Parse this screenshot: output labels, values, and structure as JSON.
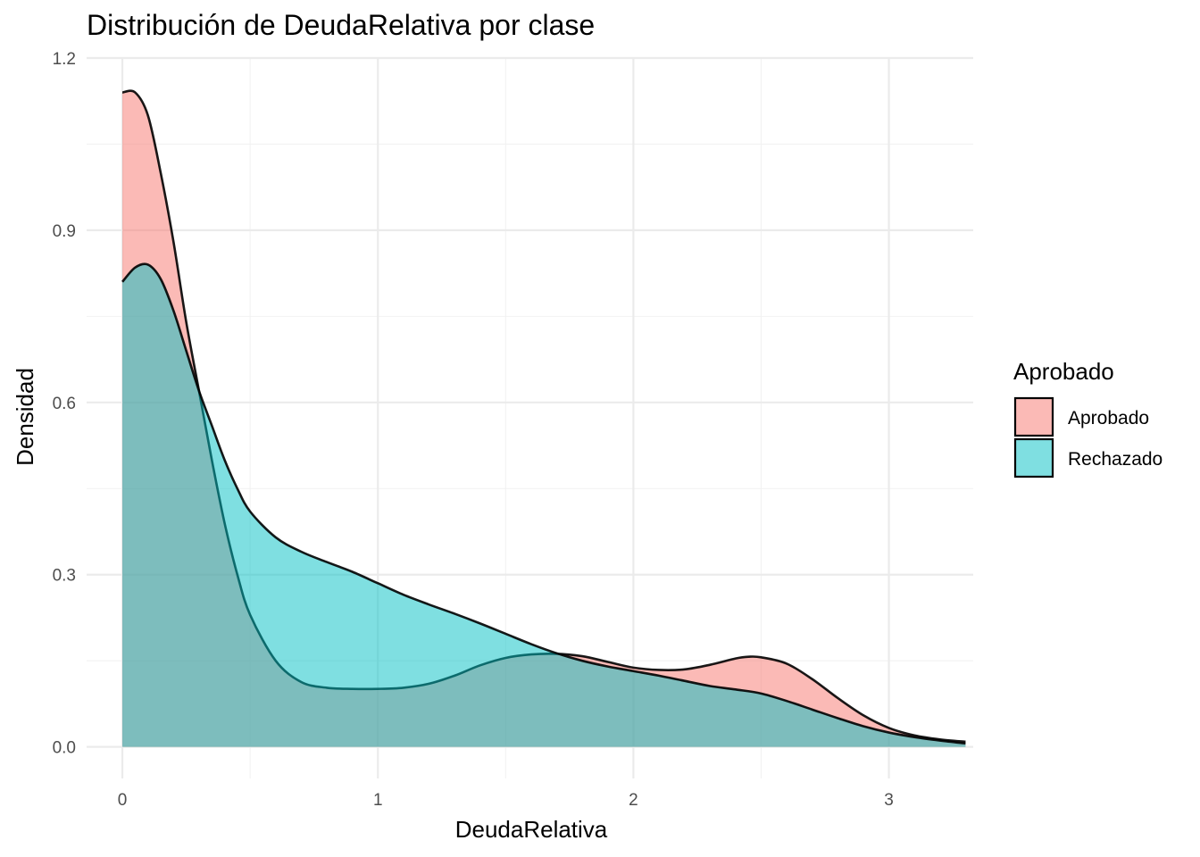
{
  "chart_data": {
    "type": "area",
    "subtype": "density",
    "title": "Distribución de DeudaRelativa por clase",
    "xlabel": "DeudaRelativa",
    "ylabel": "Densidad",
    "xlim": [
      -0.14,
      3.33
    ],
    "ylim": [
      -0.055,
      1.2
    ],
    "x_ticks": [
      0,
      1,
      2,
      3
    ],
    "x_tick_labels": [
      "0",
      "1",
      "2",
      "3"
    ],
    "y_ticks": [
      0.0,
      0.3,
      0.6,
      0.9,
      1.2
    ],
    "y_tick_labels": [
      "0.0",
      "0.3",
      "0.6",
      "0.9",
      "1.2"
    ],
    "grid": true,
    "legend": {
      "title": "Aprobado",
      "position": "right"
    },
    "series": [
      {
        "name": "Aprobado",
        "color": "#F8766D",
        "fill_opacity": 0.5,
        "x": [
          0,
          0.05,
          0.1,
          0.15,
          0.2,
          0.25,
          0.3,
          0.35,
          0.4,
          0.45,
          0.5,
          0.6,
          0.7,
          0.8,
          0.9,
          1.0,
          1.1,
          1.2,
          1.3,
          1.4,
          1.5,
          1.6,
          1.7,
          1.8,
          1.9,
          2.0,
          2.1,
          2.2,
          2.3,
          2.4,
          2.45,
          2.5,
          2.6,
          2.7,
          2.8,
          2.9,
          3.0,
          3.1,
          3.2,
          3.3
        ],
        "y": [
          1.14,
          1.14,
          1.1,
          1.0,
          0.88,
          0.74,
          0.62,
          0.5,
          0.39,
          0.3,
          0.23,
          0.15,
          0.113,
          0.103,
          0.101,
          0.101,
          0.103,
          0.11,
          0.124,
          0.142,
          0.155,
          0.161,
          0.162,
          0.158,
          0.148,
          0.138,
          0.134,
          0.135,
          0.143,
          0.154,
          0.157,
          0.156,
          0.145,
          0.118,
          0.085,
          0.055,
          0.033,
          0.02,
          0.013,
          0.009
        ]
      },
      {
        "name": "Rechazado",
        "color": "#00BFC4",
        "fill_opacity": 0.5,
        "x": [
          0,
          0.05,
          0.1,
          0.15,
          0.2,
          0.25,
          0.3,
          0.35,
          0.4,
          0.45,
          0.5,
          0.6,
          0.7,
          0.8,
          0.9,
          1.0,
          1.1,
          1.2,
          1.3,
          1.4,
          1.5,
          1.6,
          1.7,
          1.8,
          1.9,
          2.0,
          2.1,
          2.2,
          2.3,
          2.4,
          2.5,
          2.6,
          2.7,
          2.8,
          2.9,
          3.0,
          3.1,
          3.2,
          3.3
        ],
        "y": [
          0.81,
          0.835,
          0.84,
          0.815,
          0.76,
          0.69,
          0.62,
          0.56,
          0.5,
          0.45,
          0.41,
          0.365,
          0.34,
          0.322,
          0.305,
          0.285,
          0.265,
          0.248,
          0.232,
          0.215,
          0.197,
          0.179,
          0.163,
          0.15,
          0.14,
          0.132,
          0.124,
          0.115,
          0.106,
          0.1,
          0.093,
          0.08,
          0.065,
          0.05,
          0.036,
          0.025,
          0.017,
          0.011,
          0.006
        ]
      }
    ]
  }
}
